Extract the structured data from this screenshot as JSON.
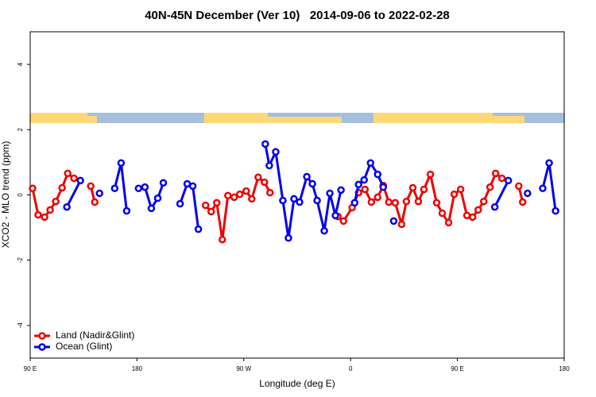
{
  "chart_data": {
    "type": "line",
    "title": "40N-45N December (Ver 10)   2014-09-06 to 2022-02-28",
    "x_label": "Longitude (deg E)",
    "y_label": "XCO2 - MLO trend (ppm)",
    "xlim": [
      90,
      540
    ],
    "xticks": [
      {
        "value": 90,
        "label": "90 E"
      },
      180,
      {
        "value": 270,
        "label": "90 W"
      },
      {
        "value": 360,
        "label": "0"
      },
      {
        "value": 450,
        "label": "90 E"
      },
      {
        "value": 540,
        "label": "180"
      }
    ],
    "ylim": [
      -5,
      5
    ],
    "yticks": [
      -4,
      -2,
      0,
      2,
      4
    ],
    "legend": "bottom-left",
    "series": [
      {
        "name": "Land (Nadir&Glint)",
        "color": "#ee0000",
        "x": [
          92.0,
          96.7,
          102.1,
          106.8,
          111.5,
          116.9,
          121.6,
          126.9,
          null,
          141.0,
          144.4,
          null,
          237.8,
          242.5,
          247.2,
          251.9,
          256.6,
          261.9,
          266.6,
          272.0,
          276.7,
          282.1,
          287.4,
          292.1,
          null,
          349.3,
          354.0,
          361.3,
          366.7,
          372.1,
          377.5,
          382.8,
          387.5,
          392.2,
          397.6,
          403.0,
          407.0,
          412.4,
          417.1,
          421.8,
          427.2,
          432.5,
          437.2,
          442.6,
          447.3,
          452.7,
          458.0,
          462.8,
          467.5,
          472.2,
          477.5,
          482.2,
          487.5,
          null,
          501.7,
          505.0
        ],
        "values": [
          0.2,
          -0.61,
          -0.68,
          -0.46,
          -0.2,
          0.22,
          0.66,
          0.51,
          null,
          0.27,
          -0.22,
          null,
          -0.32,
          -0.51,
          -0.24,
          -1.37,
          -0.02,
          -0.07,
          0.02,
          0.12,
          -0.12,
          0.54,
          0.39,
          0.07,
          null,
          -0.66,
          -0.8,
          -0.39,
          0.07,
          0.17,
          -0.22,
          -0.07,
          0.29,
          -0.22,
          -0.24,
          -0.9,
          -0.2,
          0.22,
          -0.2,
          0.17,
          0.63,
          -0.24,
          -0.56,
          -0.85,
          0.02,
          0.17,
          -0.63,
          -0.68,
          -0.46,
          -0.2,
          0.24,
          0.66,
          0.51,
          null,
          0.27,
          -0.22
        ]
      },
      {
        "name": "Ocean (Glint)",
        "color": "#0000ee",
        "x": [
          120.9,
          132.3,
          null,
          148.4,
          null,
          161.2,
          166.6,
          171.3,
          null,
          181.3,
          186.7,
          192.1,
          197.5,
          202.2,
          null,
          216.3,
          222.3,
          227.0,
          231.7,
          null,
          288.1,
          291.5,
          296.9,
          302.9,
          307.6,
          312.3,
          317.0,
          323.1,
          327.8,
          331.8,
          337.8,
          342.5,
          347.2,
          351.9,
          null,
          363.4,
          366.7,
          371.4,
          376.8,
          382.8,
          387.5,
          null,
          396.3,
          null,
          481.5,
          492.9,
          null,
          509.1,
          null,
          521.9,
          527.3,
          532.7
        ],
        "values": [
          -0.37,
          0.44,
          null,
          0.05,
          null,
          0.2,
          0.98,
          -0.49,
          null,
          0.2,
          0.24,
          -0.41,
          -0.1,
          0.37,
          null,
          -0.27,
          0.34,
          0.27,
          -1.05,
          null,
          1.56,
          0.9,
          1.32,
          -0.17,
          -1.32,
          -0.12,
          -0.22,
          0.56,
          0.34,
          -0.17,
          -1.1,
          0.05,
          -0.63,
          0.15,
          null,
          -0.24,
          0.32,
          0.46,
          0.98,
          0.63,
          0.24,
          null,
          -0.8,
          null,
          -0.37,
          0.44,
          null,
          0.05,
          null,
          0.2,
          0.98,
          -0.49
        ]
      }
    ]
  }
}
